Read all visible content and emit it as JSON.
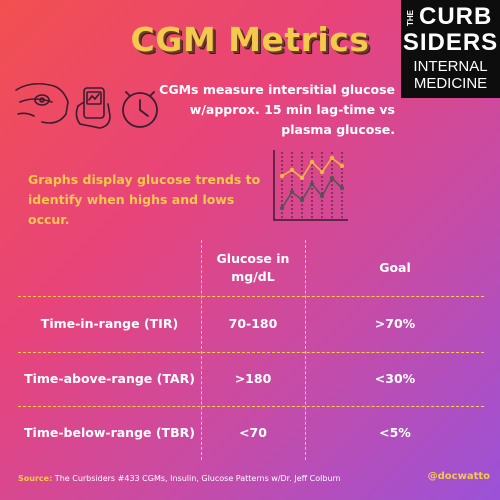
{
  "title": "CGM Metrics",
  "logo": {
    "the": "THE",
    "curb": "CURB",
    "siders": "SIDERS",
    "internal": "INTERNAL",
    "medicine": "MEDICINE"
  },
  "description": "CGMs measure intersitial glucose w/approx. 15 min lag-time vs plasma glucose.",
  "graphs_text": "Graphs display glucose trends to identify when highs and lows occur.",
  "colors": {
    "accent_yellow": "#f4c94d",
    "divider": "#ffcf4a",
    "line_orange": "#f0b445",
    "line_dark": "#555555"
  },
  "icons": [
    "cgm-sensor-arm-icon",
    "cgm-reader-hand-icon",
    "clock-icon"
  ],
  "table": {
    "headers": [
      "",
      "Glucose in mg/dL",
      "Goal"
    ],
    "rows": [
      {
        "metric": "Time-in-range (TIR)",
        "glucose": "70-180",
        "goal": ">70%"
      },
      {
        "metric": "Time-above-range (TAR)",
        "glucose": ">180",
        "goal": "<30%"
      },
      {
        "metric": "Time-below-range (TBR)",
        "glucose": "<70",
        "goal": "<5%"
      }
    ]
  },
  "footer": {
    "label": "Source:",
    "text": " The Curbsiders #433 CGMs, Insulin, Glucose Patterns w/Dr. Jeff Colburn"
  },
  "handle": "@docwatto"
}
